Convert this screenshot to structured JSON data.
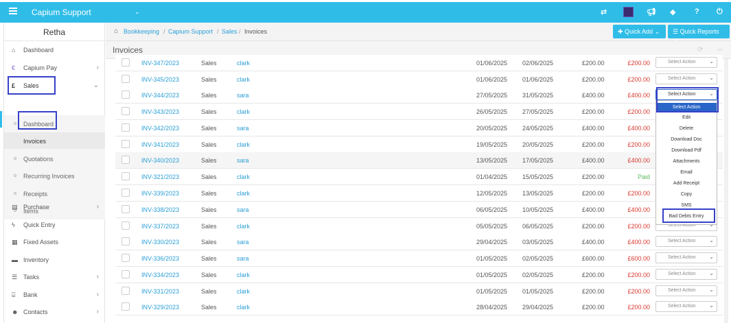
{
  "topbar": {
    "brand": "Capium Support",
    "icons": [
      "transfer-icon",
      "megaphone-icon",
      "tag-icon",
      "help-icon",
      "power-icon"
    ]
  },
  "sidebar": {
    "user": "Retha",
    "items": [
      {
        "label": "Dashboard",
        "icon": "home-icon"
      },
      {
        "label": "Capium Pay",
        "icon": "pay-icon"
      },
      {
        "label": "Sales",
        "icon": "pound-icon"
      },
      {
        "label": "Purchase",
        "icon": "purchase-icon"
      },
      {
        "label": "Quick Entry",
        "icon": "bolt-icon"
      },
      {
        "label": "Fixed Assets",
        "icon": "building-icon"
      },
      {
        "label": "Inventory",
        "icon": "truck-icon"
      },
      {
        "label": "Tasks",
        "icon": "tasks-icon"
      },
      {
        "label": "Bank",
        "icon": "bank-icon"
      },
      {
        "label": "Contacts",
        "icon": "contacts-icon"
      }
    ],
    "sales_sub": [
      "Dashboard",
      "Invoices",
      "Quotations",
      "Recurring Invoices",
      "Receipts",
      "Items"
    ]
  },
  "breadcrumb": {
    "items": [
      "Bookkeeping",
      "Capium Support",
      "Sales"
    ],
    "current": "Invoices",
    "sep": "/"
  },
  "buttons": {
    "quick_add": "Quick Add",
    "quick_reports": "Quick Reports"
  },
  "panel": {
    "title": "Invoices"
  },
  "select_placeholder": "Select Action",
  "rows": [
    {
      "inv": "INV-347/2023",
      "type": "Sales",
      "cust": "clark",
      "d1": "01/06/2025",
      "d2": "02/06/2025",
      "amt": "£200.00",
      "due": "£200.00"
    },
    {
      "inv": "INV-345/2023",
      "type": "Sales",
      "cust": "clark",
      "d1": "01/06/2025",
      "d2": "01/06/2025",
      "amt": "£200.00",
      "due": "£200.00"
    },
    {
      "inv": "INV-344/2023",
      "type": "Sales",
      "cust": "sara",
      "d1": "27/05/2025",
      "d2": "31/05/2025",
      "amt": "£400.00",
      "due": "£400.00"
    },
    {
      "inv": "INV-343/2023",
      "type": "Sales",
      "cust": "clark",
      "d1": "26/05/2025",
      "d2": "27/05/2025",
      "amt": "£200.00",
      "due": "£200.00"
    },
    {
      "inv": "INV-342/2023",
      "type": "Sales",
      "cust": "sara",
      "d1": "20/05/2025",
      "d2": "24/05/2025",
      "amt": "£400.00",
      "due": "£400.00"
    },
    {
      "inv": "INV-341/2023",
      "type": "Sales",
      "cust": "clark",
      "d1": "19/05/2025",
      "d2": "20/05/2025",
      "amt": "£200.00",
      "due": "£200.00"
    },
    {
      "inv": "INV-340/2023",
      "type": "Sales",
      "cust": "sara",
      "d1": "13/05/2025",
      "d2": "17/05/2025",
      "amt": "£400.00",
      "due": "£400.00"
    },
    {
      "inv": "INV-321/2023",
      "type": "Sales",
      "cust": "clark",
      "d1": "01/04/2025",
      "d2": "15/05/2025",
      "amt": "£200.00",
      "due": "Paid"
    },
    {
      "inv": "INV-339/2023",
      "type": "Sales",
      "cust": "clark",
      "d1": "12/05/2025",
      "d2": "13/05/2025",
      "amt": "£200.00",
      "due": "£200.00"
    },
    {
      "inv": "INV-338/2023",
      "type": "Sales",
      "cust": "sara",
      "d1": "06/05/2025",
      "d2": "10/05/2025",
      "amt": "£400.00",
      "due": "£400.00"
    },
    {
      "inv": "INV-337/2023",
      "type": "Sales",
      "cust": "clark",
      "d1": "05/05/2025",
      "d2": "06/05/2025",
      "amt": "£200.00",
      "due": "£200.00"
    },
    {
      "inv": "INV-330/2023",
      "type": "Sales",
      "cust": "sara",
      "d1": "29/04/2025",
      "d2": "03/05/2025",
      "amt": "£400.00",
      "due": "£400.00"
    },
    {
      "inv": "INV-336/2023",
      "type": "Sales",
      "cust": "sara",
      "d1": "01/05/2025",
      "d2": "02/05/2025",
      "amt": "£600.00",
      "due": "£600.00"
    },
    {
      "inv": "INV-334/2023",
      "type": "Sales",
      "cust": "clark",
      "d1": "01/05/2025",
      "d2": "02/05/2025",
      "amt": "£200.00",
      "due": "£200.00"
    },
    {
      "inv": "INV-331/2023",
      "type": "Sales",
      "cust": "clark",
      "d1": "01/05/2025",
      "d2": "01/05/2025",
      "amt": "£200.00",
      "due": "£200.00"
    },
    {
      "inv": "INV-329/2023",
      "type": "Sales",
      "cust": "clark",
      "d1": "28/04/2025",
      "d2": "29/04/2025",
      "amt": "£200.00",
      "due": "£200.00"
    }
  ],
  "dropdown": {
    "options": [
      "Select Action",
      "Edit",
      "Delete",
      "Download Doc",
      "Download Pdf",
      "Attachments",
      "Email",
      "Add Receipt",
      "Copy",
      "SMS",
      "Bad Debts Entry"
    ]
  },
  "colors": {
    "accent": "#2fbde8",
    "link": "#2a9fd6",
    "due": "#d9362b",
    "paid": "#5cb85c",
    "highlight": "#3640c8"
  }
}
